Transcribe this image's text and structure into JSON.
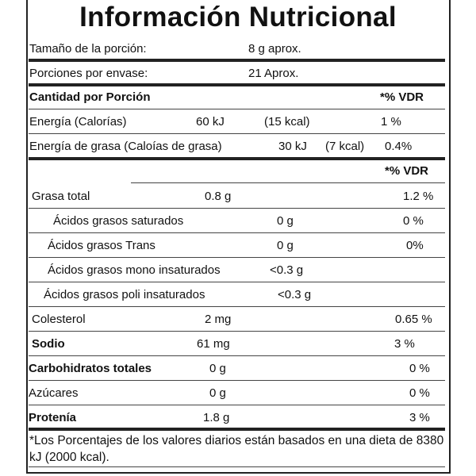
{
  "title": "Información Nutricional",
  "serving_size": {
    "label": "Tamaño de la porción:",
    "value": "8 g aprox."
  },
  "servings_per_container": {
    "label": "Porciones por envase:",
    "value": "21 Aprox."
  },
  "amount_header": {
    "label": "Cantidad por Porción",
    "vdr": "*% VDR"
  },
  "energy": {
    "label": "Energía (Calorías)",
    "kj": "60 kJ",
    "kcal": "(15 kcal)",
    "vdr": "1 %"
  },
  "fat_energy": {
    "label": "Energía de grasa (Caloías de grasa)",
    "kj": "30 kJ",
    "kcal": "(7 kcal)",
    "vdr": "0.4%"
  },
  "vdr_header": "*% VDR",
  "nutrients": [
    {
      "label": "Grasa total",
      "amount": "0.8 g",
      "vdr": "1.2 %",
      "bold": false
    },
    {
      "label": "Ácidos grasos saturados",
      "amount": "0 g",
      "vdr": "0 %",
      "bold": false
    },
    {
      "label": "Ácidos grasos Trans",
      "amount": "0 g",
      "vdr": "0%",
      "bold": false
    },
    {
      "label": "Ácidos grasos mono insaturados",
      "amount": "<0.3 g",
      "vdr": "",
      "bold": false
    },
    {
      "label": "Ácidos grasos poli insaturados",
      "amount": "<0.3 g",
      "vdr": "",
      "bold": false
    },
    {
      "label": "Colesterol",
      "amount": "2 mg",
      "vdr": "0.65 %",
      "bold": false
    },
    {
      "label": "Sodio",
      "amount": "61 mg",
      "vdr": "3 %",
      "bold": true
    },
    {
      "label": "Carbohidratos totales",
      "amount": "0 g",
      "vdr": "0 %",
      "bold": true
    },
    {
      "label": "Azúcares",
      "amount": "0 g",
      "vdr": "0 %",
      "bold": false
    },
    {
      "label": "Protenía",
      "amount": "1.8 g",
      "vdr": "3 %",
      "bold": true
    }
  ],
  "footnote": "*Los Porcentajes de los valores diarios están basados en una dieta de 8380 kJ (2000 kcal)."
}
